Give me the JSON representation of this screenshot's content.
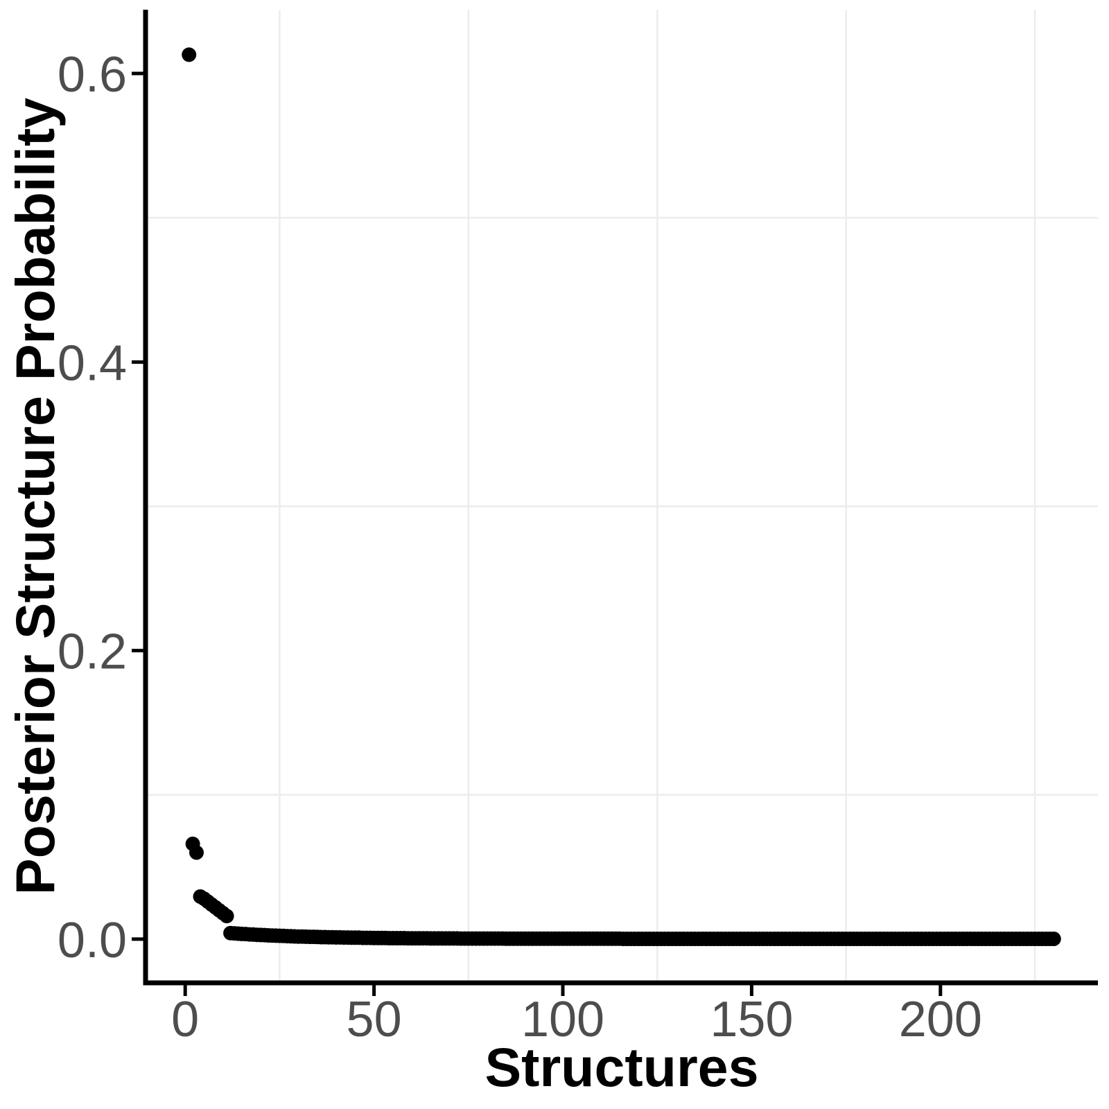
{
  "chart_data": {
    "type": "scatter",
    "title": "",
    "xlabel": "Structures",
    "ylabel": "Posterior Structure Probability",
    "x_tick_labels": [
      "0",
      "50",
      "100",
      "150",
      "200"
    ],
    "x_tick_values": [
      0,
      50,
      100,
      150,
      200
    ],
    "y_tick_labels": [
      "0.0",
      "0.2",
      "0.4",
      "0.6"
    ],
    "y_tick_values": [
      0.0,
      0.2,
      0.4,
      0.6
    ],
    "x_minor_gridlines": [
      25,
      75,
      125,
      175,
      225
    ],
    "y_minor_gridlines": [
      0.1,
      0.3,
      0.5
    ],
    "xlim": [
      -10.5,
      241.7
    ],
    "ylim": [
      -0.0303,
      0.6442
    ],
    "grid": "minor-only",
    "legend_position": "none",
    "n_points": 230,
    "point_color": "#000000",
    "axis_color": "#000000",
    "tick_label_color": "#4d4d4d",
    "grid_color": "#ececec",
    "background_color": "#ffffff",
    "x": [
      1,
      2,
      3,
      4,
      5,
      6,
      7,
      8,
      9,
      10,
      11,
      12,
      13,
      14,
      15,
      16,
      17,
      18,
      19,
      20,
      21,
      22,
      23,
      24,
      25,
      26,
      27,
      28,
      29,
      30,
      31,
      32,
      33,
      34,
      35,
      36,
      37,
      38,
      39,
      40,
      41,
      42,
      43,
      44,
      45,
      46,
      47,
      48,
      49,
      50,
      51,
      52,
      53,
      54,
      55,
      56,
      57,
      58,
      59,
      60,
      61,
      62,
      63,
      64,
      65,
      66,
      67,
      68,
      69,
      70,
      71,
      72,
      73,
      74,
      75,
      76,
      77,
      78,
      79,
      80,
      81,
      82,
      83,
      84,
      85,
      86,
      87,
      88,
      89,
      90,
      91,
      92,
      93,
      94,
      95,
      96,
      97,
      98,
      99,
      100,
      101,
      102,
      103,
      104,
      105,
      106,
      107,
      108,
      109,
      110,
      111,
      112,
      113,
      114,
      115,
      116,
      117,
      118,
      119,
      120,
      121,
      122,
      123,
      124,
      125,
      126,
      127,
      128,
      129,
      130,
      131,
      132,
      133,
      134,
      135,
      136,
      137,
      138,
      139,
      140,
      141,
      142,
      143,
      144,
      145,
      146,
      147,
      148,
      149,
      150,
      151,
      152,
      153,
      154,
      155,
      156,
      157,
      158,
      159,
      160,
      161,
      162,
      163,
      164,
      165,
      166,
      167,
      168,
      169,
      170,
      171,
      172,
      173,
      174,
      175,
      176,
      177,
      178,
      179,
      180,
      181,
      182,
      183,
      184,
      185,
      186,
      187,
      188,
      189,
      190,
      191,
      192,
      193,
      194,
      195,
      196,
      197,
      198,
      199,
      200,
      201,
      202,
      203,
      204,
      205,
      206,
      207,
      208,
      209,
      210,
      211,
      212,
      213,
      214,
      215,
      216,
      217,
      218,
      219,
      220,
      221,
      222,
      223,
      224,
      225,
      226,
      227,
      228,
      229,
      230
    ],
    "y": [
      0.613,
      0.066,
      0.06,
      0.0295,
      0.028,
      0.026,
      0.024,
      0.022,
      0.02,
      0.018,
      0.016,
      0.0042,
      0.004,
      0.0038,
      0.0036,
      0.0035,
      0.0033,
      0.0032,
      0.003,
      0.0029,
      0.0028,
      0.0026,
      0.0025,
      0.0024,
      0.0023,
      0.0022,
      0.0021,
      0.002,
      0.0019,
      0.0018,
      0.0018,
      0.0017,
      0.0016,
      0.0016,
      0.0015,
      0.0014,
      0.0014,
      0.0013,
      0.0013,
      0.0012,
      0.0012,
      0.0011,
      0.0011,
      0.001,
      0.001,
      0.001,
      0.0009,
      0.0009,
      0.0009,
      0.0008,
      0.0008,
      0.0008,
      0.0008,
      0.0007,
      0.0007,
      0.0007,
      0.0007,
      0.0007,
      0.0006,
      0.0006,
      0.0006,
      0.0006,
      0.0006,
      0.0006,
      0.0005,
      0.0005,
      0.0005,
      0.0005,
      0.0005,
      0.0005,
      0.0005,
      0.0005,
      0.0004,
      0.0004,
      0.0004,
      0.0004,
      0.0004,
      0.0004,
      0.0004,
      0.0004,
      0.0004,
      0.0004,
      0.0004,
      0.0004,
      0.0003,
      0.0003,
      0.0003,
      0.0003,
      0.0003,
      0.0003,
      0.0003,
      0.0003,
      0.0003,
      0.0003,
      0.0003,
      0.0003,
      0.0003,
      0.0003,
      0.0003,
      0.0003,
      0.0003,
      0.0003,
      0.0003,
      0.0003,
      0.0003,
      0.0003,
      0.0003,
      0.0003,
      0.0003,
      0.0003,
      0.0003,
      0.0003,
      0.0003,
      0.0003,
      0.0003,
      0.0002,
      0.0002,
      0.0002,
      0.0002,
      0.0002,
      0.0002,
      0.0002,
      0.0002,
      0.0002,
      0.0002,
      0.0002,
      0.0002,
      0.0002,
      0.0002,
      0.0002,
      0.0002,
      0.0002,
      0.0002,
      0.0002,
      0.0002,
      0.0002,
      0.0002,
      0.0002,
      0.0002,
      0.0002,
      0.0002,
      0.0002,
      0.0002,
      0.0002,
      0.0002,
      0.0002,
      0.0002,
      0.0002,
      0.0002,
      0.0002,
      0.0002,
      0.0002,
      0.0002,
      0.0002,
      0.0002,
      0.0002,
      0.0002,
      0.0002,
      0.0002,
      0.0002,
      0.0002,
      0.0002,
      0.0002,
      0.0002,
      0.0002,
      0.0002,
      0.0002,
      0.0002,
      0.0002,
      0.0002,
      0.0002,
      0.0002,
      0.0002,
      0.0002,
      0.0002,
      0.0002,
      0.0002,
      0.0002,
      0.0002,
      0.0002,
      0.0002,
      0.0002,
      0.0002,
      0.0002,
      0.0002,
      0.0002,
      0.0002,
      0.0002,
      0.0002,
      0.0002,
      0.0002,
      0.0002,
      0.0002,
      0.0002,
      0.0002,
      0.0002,
      0.0002,
      0.0002,
      0.0002,
      0.0002,
      0.0002,
      0.0002,
      0.0002,
      0.0002,
      0.0002,
      0.0002,
      0.0002,
      0.0002,
      0.0002,
      0.0002,
      0.0002,
      0.0002,
      0.0002,
      0.0002,
      0.0002,
      0.0002,
      0.0002,
      0.0002,
      0.0002,
      0.0002,
      0.0002,
      0.0002,
      0.0002,
      0.0002,
      0.0002,
      0.0002,
      0.0002,
      0.0002,
      0.0002,
      0.0002
    ]
  }
}
